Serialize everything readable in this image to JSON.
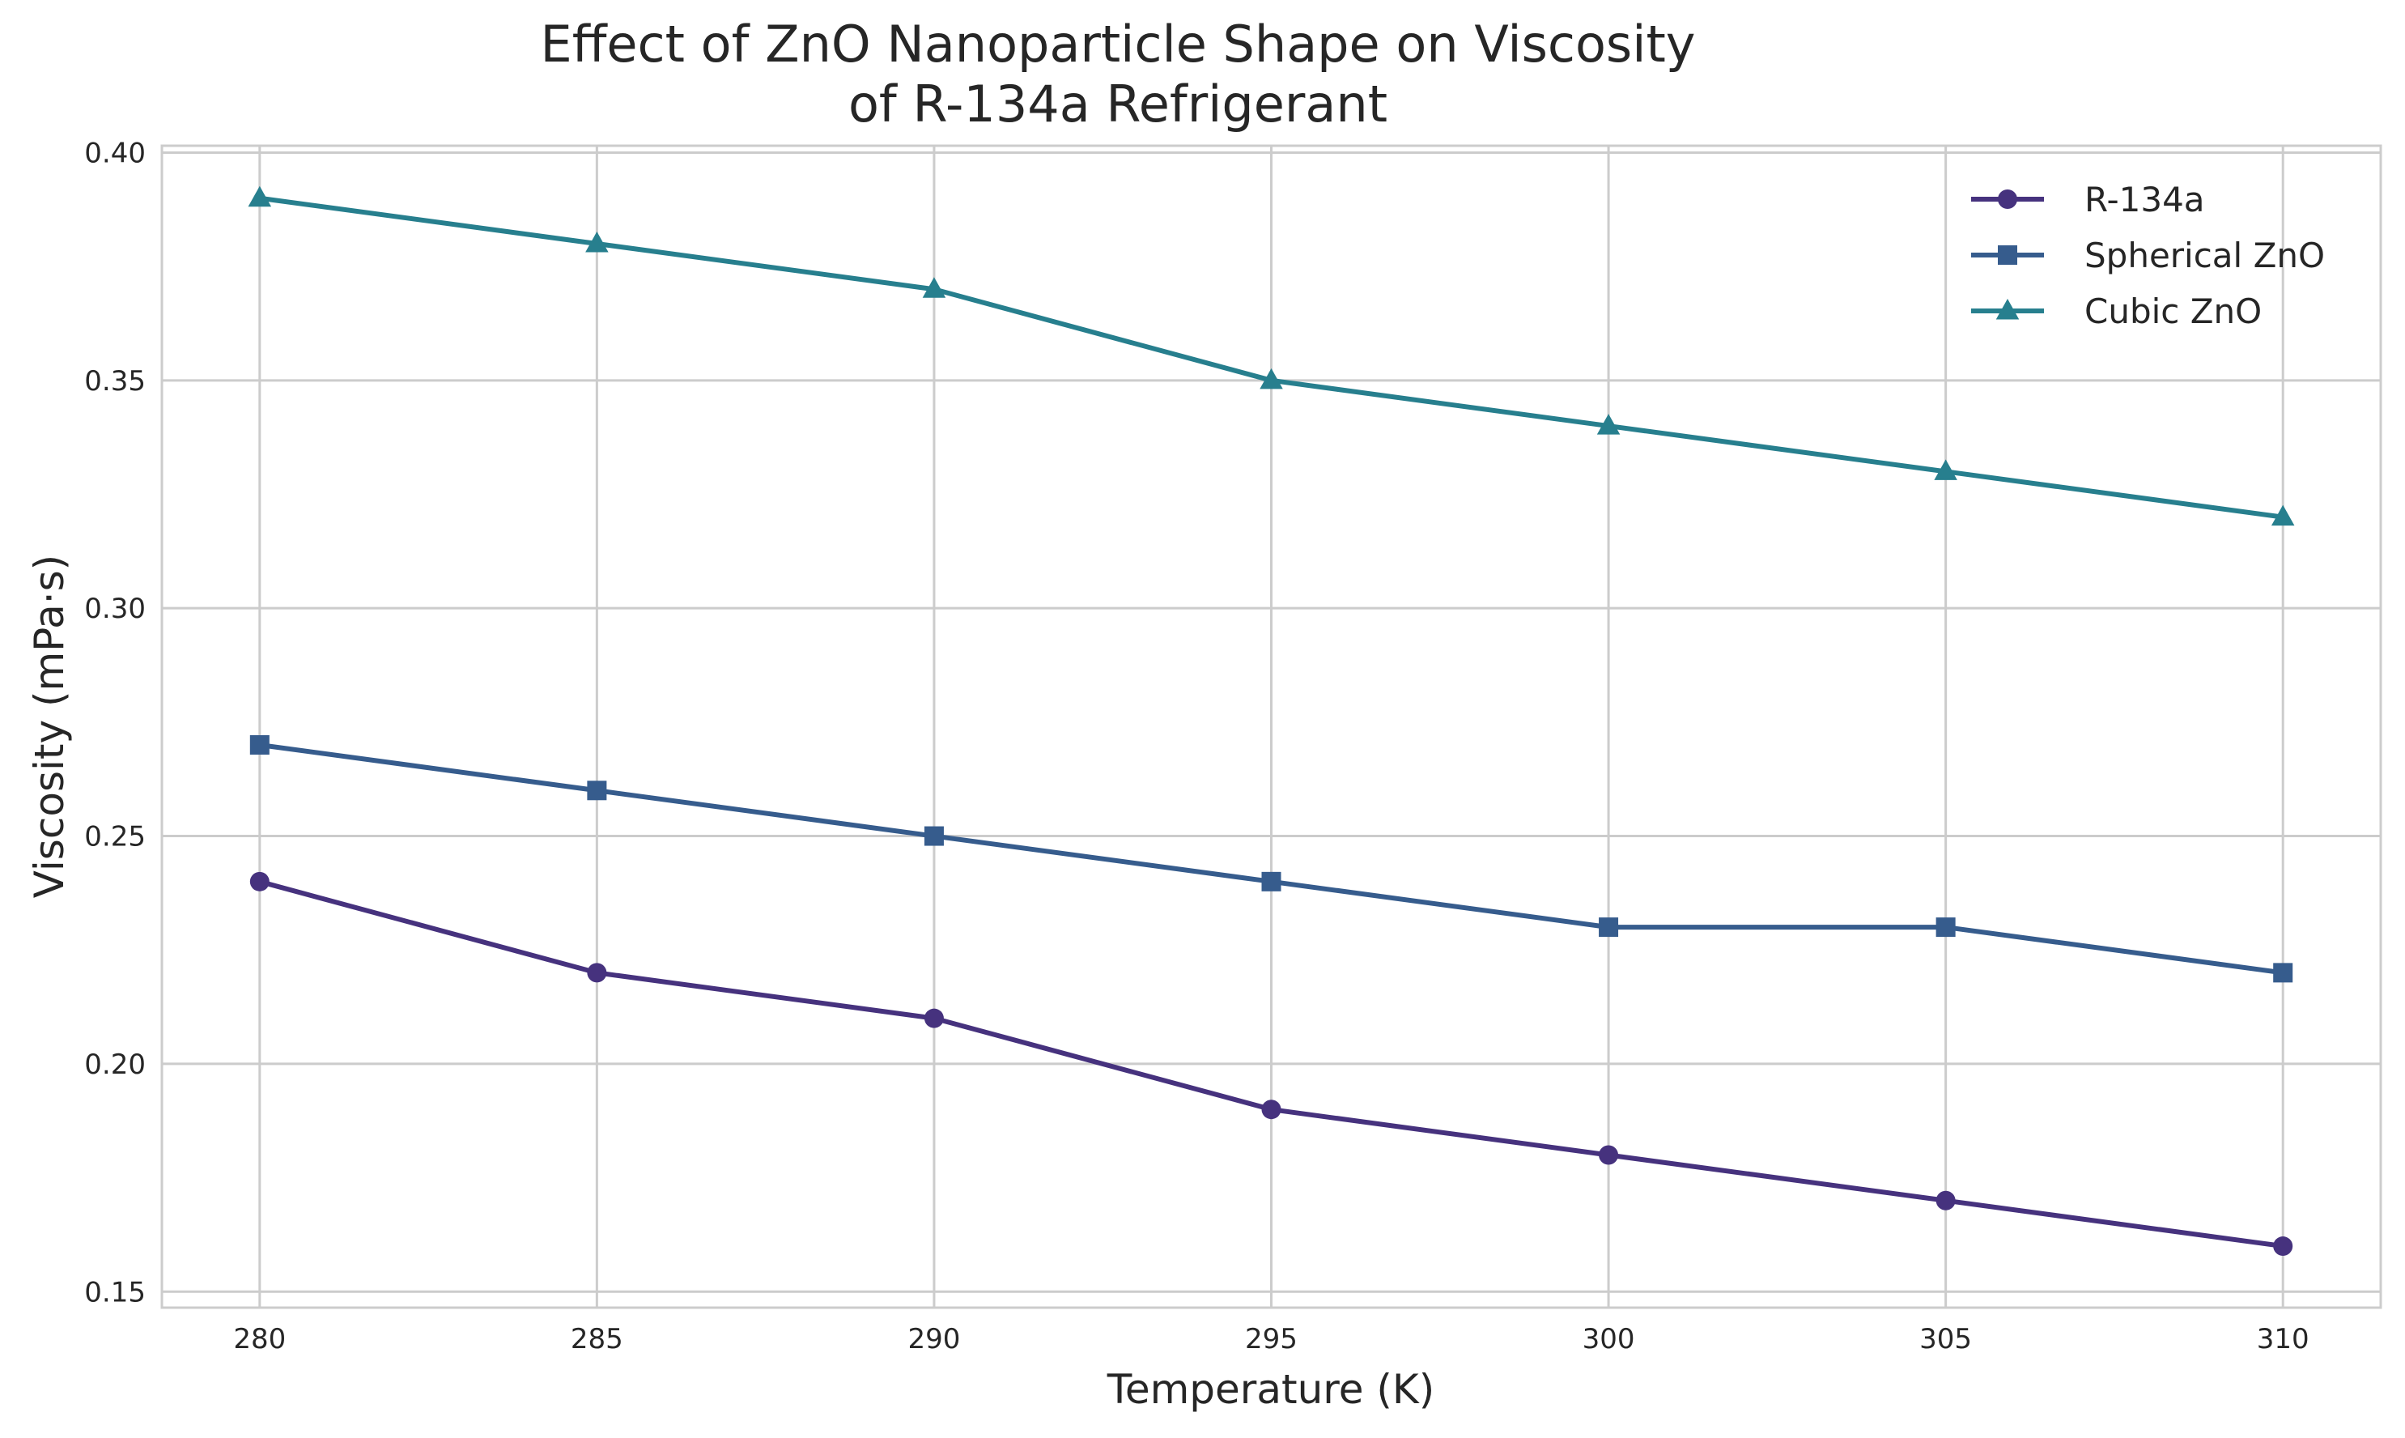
{
  "chart_data": {
    "type": "line",
    "title_line1": "Effect of ZnO Nanoparticle Shape on Viscosity",
    "title_line2": "of R-134a Refrigerant",
    "xlabel": "Temperature (K)",
    "ylabel": "Viscosity (mPa·s)",
    "x": [
      280,
      285,
      290,
      295,
      300,
      305,
      310
    ],
    "xticks": [
      "280",
      "285",
      "290",
      "295",
      "300",
      "305",
      "310"
    ],
    "yticks": [
      "0.15",
      "0.20",
      "0.25",
      "0.30",
      "0.35",
      "0.40"
    ],
    "xlim": [
      278.55,
      311.45
    ],
    "ylim": [
      0.1465,
      0.4015
    ],
    "grid": true,
    "legend_position": "top-right",
    "series": [
      {
        "name": "R-134a",
        "marker": "circle",
        "color": "#46327e",
        "values": [
          0.24,
          0.22,
          0.21,
          0.19,
          0.18,
          0.17,
          0.16
        ]
      },
      {
        "name": "Spherical ZnO",
        "marker": "square",
        "color": "#365c8d",
        "values": [
          0.27,
          0.26,
          0.25,
          0.24,
          0.23,
          0.23,
          0.22
        ]
      },
      {
        "name": "Cubic ZnO",
        "marker": "triangle",
        "color": "#277f8e",
        "values": [
          0.39,
          0.38,
          0.37,
          0.35,
          0.34,
          0.33,
          0.32
        ]
      }
    ]
  }
}
